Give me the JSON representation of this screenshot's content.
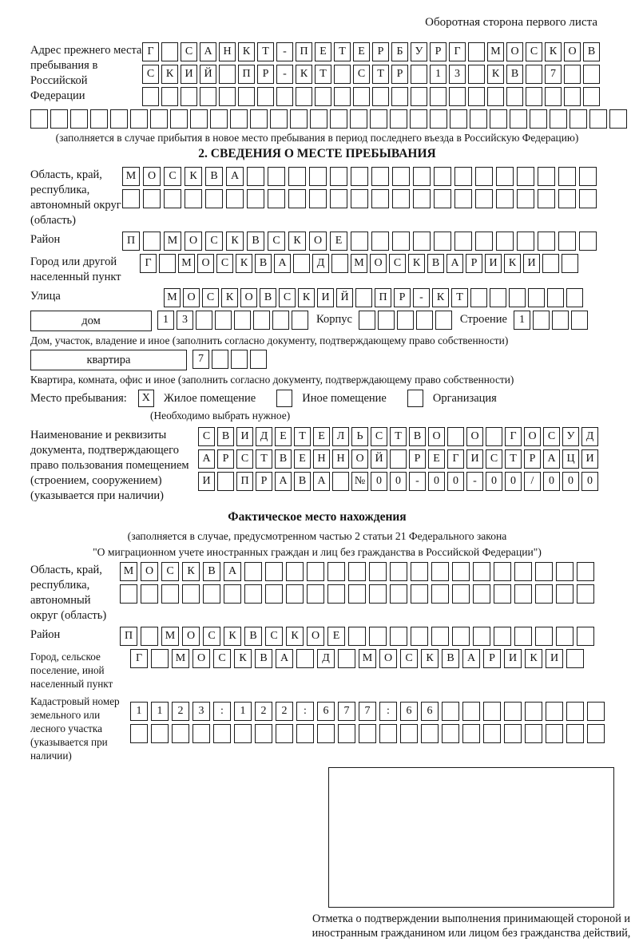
{
  "page": {
    "back_note": "Оборотная сторона первого листа"
  },
  "prev_address": {
    "label": "Адрес прежнего места пребывания в Российской Федерации",
    "rows": [
      "Г САНКТ-ПЕТЕРБУРГ МОСКОВ",
      "СКИЙ ПР-КТ СТР 13 КВ 7  ",
      "                        "
    ],
    "full_row": "                              ",
    "caption": "(заполняется в случае прибытия в новое место пребывания в период последнего въезда в Российскую Федерацию)"
  },
  "section2": {
    "title": "2. СВЕДЕНИЯ О МЕСТЕ ПРЕБЫВАНИЯ",
    "region": {
      "label": "Область, край, республика, автономный округ (область)",
      "rows": [
        "МОСКВА                 ",
        "                       "
      ]
    },
    "district": {
      "label": "Район",
      "row": "П МОСКВСКОЕ            "
    },
    "city": {
      "label": "Город или другой населенный пункт",
      "row": "Г МОСКВА Д МОСКВАРИКИ  "
    },
    "street": {
      "label": "Улица",
      "row": "МОСКОВСКИЙ ПР-КТ      "
    },
    "house": {
      "type_label": "дом",
      "number_cells": "13      ",
      "korpus_label": "Корпус",
      "korpus_cells": "     ",
      "stroenie_label": "Строение",
      "stroenie_cells": "1   ",
      "caption": "Дом, участок, владение и иное (заполнить согласно документу, подтверждающему право собственности)"
    },
    "apartment": {
      "type_label": "квартира",
      "number_cells": "7   ",
      "caption": "Квартира, комната, офис и иное (заполнить согласно документу, подтверждающему право собственности)"
    },
    "premises": {
      "label": "Место пребывания:",
      "options": [
        {
          "label": "Жилое помещение",
          "checked": "X"
        },
        {
          "label": "Иное помещение",
          "checked": ""
        },
        {
          "label": "Организация",
          "checked": ""
        }
      ],
      "note": "(Необходимо выбрать нужное)"
    },
    "document": {
      "label": "Наименование и реквизиты документа, подтверждающего право пользования помещением (строением, сооружением) (указывается при наличии)",
      "rows": [
        "СВИДЕТЕЛЬСТВО О ГОСУД",
        "АРСТВЕННОЙ РЕГИСТРАЦИ",
        "И ПРАВА №00-00-00/000"
      ]
    }
  },
  "actual_location": {
    "title": "Фактическое место нахождения",
    "captions": [
      "(заполняется в случае, предусмотренном частью 2 статьи 21 Федерального закона",
      "\"О миграционном учете иностранных граждан и лиц без гражданства в Российской Федерации\")"
    ],
    "region": {
      "label": "Область, край, республика, автономный округ (область)",
      "rows": [
        "МОСКВА                 ",
        "                       "
      ]
    },
    "district": {
      "label": "Район",
      "row": "П МОСКВСКОЕ            "
    },
    "city": {
      "label": "Город, сельское поселение, иной населенный пункт",
      "row": "Г МОСКВА Д МОСКВАРИКИ "
    },
    "cadastre": {
      "label": "Кадастровый номер земельного или лесного участка (указывается при наличии)",
      "rows": [
        "1123:122:677:66        ",
        "                       "
      ]
    }
  },
  "stamp": {
    "caption": "Отметка о подтверждении выполнения принимающей стороной и иностранным гражданином или лицом без гражданства действий, необходимых для его постановки на учет по месту пребывания"
  }
}
